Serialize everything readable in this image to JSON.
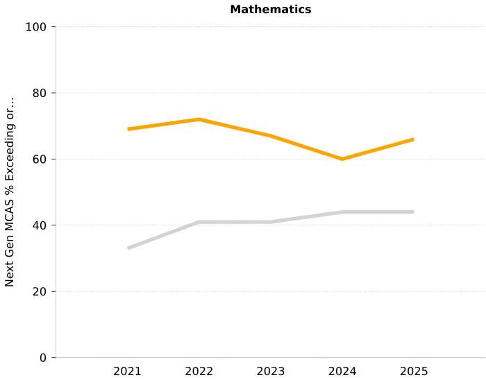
{
  "chart_data": {
    "type": "line",
    "title": "Mathematics",
    "ylabel": "Next Gen MCAS % Exceeding or…",
    "categories": [
      "2021",
      "2022",
      "2023",
      "2024",
      "2025"
    ],
    "series": [
      {
        "color": "#ffa500",
        "values": [
          69,
          72,
          67,
          60,
          66
        ]
      },
      {
        "color": "#d3d3d3",
        "values": [
          33,
          41,
          41,
          44,
          44
        ]
      }
    ],
    "ylim": [
      0,
      100
    ],
    "yticks": [
      0,
      20,
      40,
      60,
      80,
      100
    ],
    "grid": "y"
  }
}
